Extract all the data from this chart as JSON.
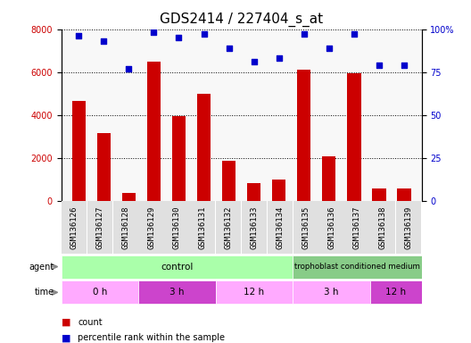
{
  "title": "GDS2414 / 227404_s_at",
  "samples": [
    "GSM136126",
    "GSM136127",
    "GSM136128",
    "GSM136129",
    "GSM136130",
    "GSM136131",
    "GSM136132",
    "GSM136133",
    "GSM136134",
    "GSM136135",
    "GSM136136",
    "GSM136137",
    "GSM136138",
    "GSM136139"
  ],
  "counts": [
    4650,
    3150,
    380,
    6500,
    3950,
    5000,
    1850,
    820,
    1000,
    6100,
    2050,
    5950,
    550,
    550
  ],
  "percentile_ranks": [
    96,
    93,
    77,
    98,
    95,
    97,
    89,
    81,
    83,
    97,
    89,
    97,
    79,
    79
  ],
  "bar_color": "#cc0000",
  "dot_color": "#0000cc",
  "ylim_left": [
    0,
    8000
  ],
  "ylim_right": [
    0,
    100
  ],
  "yticks_left": [
    0,
    2000,
    4000,
    6000,
    8000
  ],
  "yticks_right": [
    0,
    25,
    50,
    75,
    100
  ],
  "ytick_labels_right": [
    "0",
    "25",
    "50",
    "75",
    "100%"
  ],
  "control_color": "#aaffaa",
  "trophoblast_color": "#88cc88",
  "time_light_color": "#ffaaff",
  "time_dark_color": "#cc44cc",
  "label_bg_color": "#d8d8d8",
  "background_color": "#ffffff",
  "axis_bg_color": "#f8f8f8",
  "legend_count_color": "#cc0000",
  "legend_dot_color": "#0000cc",
  "title_fontsize": 11,
  "tick_fontsize": 7,
  "sample_fontsize": 6.5
}
